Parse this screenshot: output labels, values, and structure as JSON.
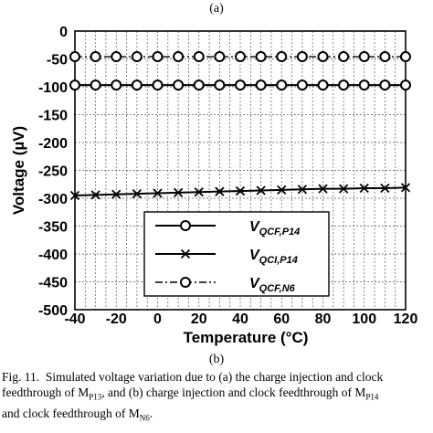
{
  "top_label": "(a)",
  "sub_label": "(b)",
  "caption": {
    "fig": "Fig. 11.",
    "line1_text": "Simulated voltage variation due to (a) the charge injection and clock",
    "line2_a": "feedthrough of M",
    "line2_sub1": "P13",
    "line2_b": ", and (b) charge injection and clock feedthrough of M",
    "line2_sub2": "P14",
    "line3_a": "and clock feedthrough of M",
    "line3_sub": "N6",
    "line3_b": "."
  },
  "chart_data": {
    "type": "line",
    "xlabel": "Temperature (°C)",
    "ylabel": "Voltage (µV)",
    "xlim": [
      -40,
      120
    ],
    "ylim": [
      -500,
      0
    ],
    "xticks": [
      "-40",
      "-20",
      "0",
      "20",
      "40",
      "60",
      "80",
      "100",
      "120"
    ],
    "yticks": [
      "0",
      "-50",
      "-100",
      "-150",
      "-200",
      "-250",
      "-300",
      "-350",
      "-400",
      "-450",
      "-500"
    ],
    "grid": true,
    "legend_position": "lower-center",
    "series": [
      {
        "name": "V_QCF,P14",
        "legend_main": "V",
        "legend_sub": "QCF,P14",
        "marker": "circle",
        "line": "solid",
        "x": [
          -40,
          -30,
          -20,
          -10,
          0,
          10,
          20,
          30,
          40,
          50,
          60,
          70,
          80,
          90,
          100,
          110,
          120
        ],
        "y": [
          -97,
          -97,
          -97,
          -97,
          -97,
          -97,
          -97,
          -97,
          -97,
          -97,
          -97,
          -97,
          -97,
          -97,
          -97,
          -97,
          -97
        ]
      },
      {
        "name": "V_QCI,P14",
        "legend_main": "V",
        "legend_sub": "QCI,P14",
        "marker": "x",
        "line": "solid",
        "x": [
          -40,
          -30,
          -20,
          -10,
          0,
          10,
          20,
          30,
          40,
          50,
          60,
          70,
          80,
          90,
          100,
          110,
          120
        ],
        "y": [
          -295,
          -294,
          -293,
          -292,
          -291,
          -290,
          -289,
          -288,
          -287,
          -286,
          -285,
          -284,
          -283,
          -283,
          -282,
          -282,
          -281
        ]
      },
      {
        "name": "V_QCF,N6",
        "legend_main": "V",
        "legend_sub": "QCF,N6",
        "marker": "circle",
        "line": "dashdot",
        "x": [
          -40,
          -30,
          -20,
          -10,
          0,
          10,
          20,
          30,
          40,
          50,
          60,
          70,
          80,
          90,
          100,
          110,
          120
        ],
        "y": [
          -46,
          -46,
          -46,
          -46,
          -46,
          -46,
          -46,
          -46,
          -46,
          -46,
          -46,
          -46,
          -46,
          -46,
          -46,
          -46,
          -46
        ]
      }
    ]
  }
}
